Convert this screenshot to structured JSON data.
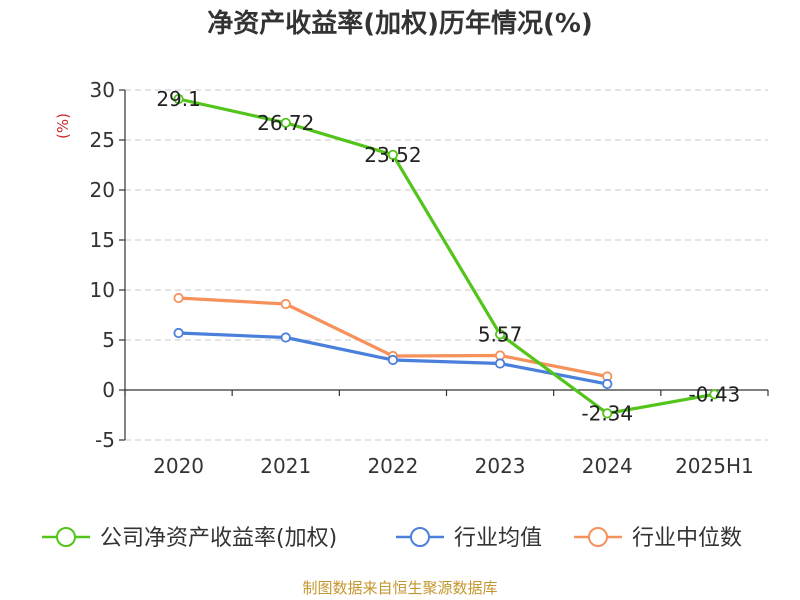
{
  "title": "净资产收益率(加权)历年情况(%)",
  "source": "制图数据来自恒生聚源数据库",
  "chart_data": {
    "type": "line",
    "title": "净资产收益率(加权)历年情况(%)",
    "ylabel": "(%)",
    "xlabel": "",
    "ylim": [
      -5,
      30
    ],
    "yticks": [
      -5,
      0,
      5,
      10,
      15,
      20,
      25,
      30
    ],
    "categories": [
      "2020",
      "2021",
      "2022",
      "2023",
      "2024",
      "2025H1"
    ],
    "grid": true,
    "legend_position": "bottom",
    "series": [
      {
        "name": "公司净资产收益率(加权)",
        "color": "#52c41a",
        "values": [
          29.1,
          26.72,
          23.52,
          5.57,
          -2.34,
          -0.43
        ],
        "labels": [
          "29.1",
          "26.72",
          "23.52",
          "5.57",
          "-2.34",
          "-0.43"
        ]
      },
      {
        "name": "行业均值",
        "color": "#4a7fdc",
        "values": [
          5.7,
          5.25,
          3.0,
          2.65,
          0.6,
          null
        ]
      },
      {
        "name": "行业中位数",
        "color": "#f5915a",
        "values": [
          9.2,
          8.6,
          3.4,
          3.45,
          1.35,
          null
        ]
      }
    ]
  }
}
